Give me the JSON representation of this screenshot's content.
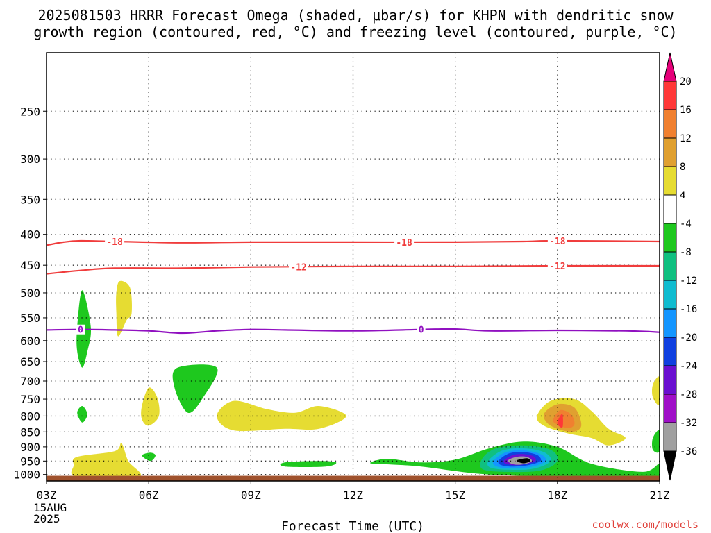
{
  "title": {
    "line1": "2025081503 HRRR Forecast Omega (shaded, μbar/s) for KHPN with dendritic snow",
    "line2": "growth region (contoured, red, °C) and freezing level (contoured, purple, °C)"
  },
  "footer": {
    "xlabel": "Forecast Time (UTC)",
    "site": "coolwx.com/models"
  },
  "chart_data": {
    "type": "heatmap",
    "x_ticks": [
      "03Z",
      "06Z",
      "09Z",
      "12Z",
      "15Z",
      "18Z",
      "21Z"
    ],
    "x_date_line1": "15AUG",
    "x_date_line2": "2025",
    "x_range_hours": [
      3,
      21
    ],
    "y_ticks": [
      250,
      300,
      350,
      400,
      450,
      500,
      550,
      600,
      650,
      700,
      750,
      800,
      850,
      900,
      950,
      1000
    ],
    "y_range_hPa": [
      200,
      1025
    ],
    "y_scale": "log",
    "grid": true,
    "colorbar": {
      "labels": [
        "20",
        "16",
        "12",
        "8",
        "4",
        "-4",
        "-8",
        "-12",
        "-16",
        "-20",
        "-24",
        "-28",
        "-32",
        "-36"
      ],
      "colors": [
        "#e6007a",
        "#ff3838",
        "#f08030",
        "#e0a030",
        "#e6dc32",
        "#ffffff",
        "#1ec81e",
        "#10c080",
        "#10bcd0",
        "#1496ff",
        "#1040e0",
        "#6a10d0",
        "#a010c8",
        "#a0a0a0",
        "#000000"
      ]
    },
    "contours": [
      {
        "level": -18,
        "color": "#f03c3c",
        "label": "-18",
        "points": [
          [
            3,
            417
          ],
          [
            3.5,
            412
          ],
          [
            4,
            410
          ],
          [
            5,
            411
          ],
          [
            7,
            413
          ],
          [
            9,
            412
          ],
          [
            12,
            412
          ],
          [
            15,
            412
          ],
          [
            17,
            411
          ],
          [
            18,
            410
          ],
          [
            21,
            411
          ]
        ],
        "label_x": [
          5,
          13.5,
          18
        ]
      },
      {
        "level": -12,
        "color": "#f03c3c",
        "label": "-12",
        "points": [
          [
            3,
            465
          ],
          [
            4,
            459
          ],
          [
            5,
            455
          ],
          [
            7,
            455
          ],
          [
            9,
            453
          ],
          [
            12,
            452
          ],
          [
            15,
            452
          ],
          [
            18,
            451
          ],
          [
            21,
            451
          ]
        ],
        "label_x": [
          10.4,
          18
        ]
      },
      {
        "level": 0,
        "color": "#9010c0",
        "label": "0",
        "points": [
          [
            3,
            576
          ],
          [
            4,
            575
          ],
          [
            5,
            576
          ],
          [
            6,
            578
          ],
          [
            7,
            583
          ],
          [
            8,
            578
          ],
          [
            9,
            575
          ],
          [
            10,
            576
          ],
          [
            12,
            578
          ],
          [
            14,
            575
          ],
          [
            15,
            574
          ],
          [
            16,
            578
          ],
          [
            18,
            577
          ],
          [
            20,
            578
          ],
          [
            21,
            581
          ]
        ],
        "label_x": [
          4,
          14
        ]
      }
    ],
    "shaded_regions": [
      {
        "value": -6,
        "points": [
          [
            3.9,
            570
          ],
          [
            4.05,
            495
          ],
          [
            4.3,
            570
          ],
          [
            4.2,
            625
          ],
          [
            4.05,
            665
          ],
          [
            3.9,
            625
          ]
        ]
      },
      {
        "value": -6,
        "points": [
          [
            3.9,
            790
          ],
          [
            4.05,
            770
          ],
          [
            4.2,
            795
          ],
          [
            4.05,
            820
          ]
        ]
      },
      {
        "value": -6,
        "points": [
          [
            5.8,
            930
          ],
          [
            6.05,
            920
          ],
          [
            6.2,
            930
          ],
          [
            6.05,
            950
          ]
        ]
      },
      {
        "value": -6,
        "points": [
          [
            6.75,
            715
          ],
          [
            6.85,
            665
          ],
          [
            8,
            665
          ],
          [
            7.6,
            745
          ],
          [
            7.15,
            790
          ]
        ]
      },
      {
        "value": -6,
        "points": [
          [
            10,
            955
          ],
          [
            11,
            950
          ],
          [
            11.5,
            955
          ],
          [
            11.2,
            970
          ],
          [
            10,
            970
          ]
        ]
      },
      {
        "value": -6,
        "points": [
          [
            12.5,
            957
          ],
          [
            13,
            942
          ],
          [
            14,
            955
          ],
          [
            15,
            945
          ],
          [
            16,
            905
          ],
          [
            17,
            882
          ],
          [
            18,
            900
          ],
          [
            19,
            960
          ],
          [
            20.5,
            990
          ],
          [
            21,
            960
          ],
          [
            21,
            1010
          ],
          [
            19,
            1010
          ],
          [
            16,
            1000
          ],
          [
            14,
            970
          ],
          [
            13,
            962
          ]
        ]
      },
      {
        "value": -6,
        "points": [
          [
            20.8,
            870
          ],
          [
            21,
            845
          ],
          [
            21,
            915
          ],
          [
            20.8,
            910
          ]
        ]
      },
      {
        "value": -10,
        "points": [
          [
            15.8,
            940
          ],
          [
            16.2,
            905
          ],
          [
            17,
            895
          ],
          [
            17.8,
            910
          ],
          [
            18,
            950
          ],
          [
            17.5,
            985
          ],
          [
            16.5,
            990
          ],
          [
            15.8,
            980
          ]
        ]
      },
      {
        "value": -14,
        "points": [
          [
            16,
            945
          ],
          [
            16.4,
            912
          ],
          [
            17,
            905
          ],
          [
            17.6,
            918
          ],
          [
            17.8,
            950
          ],
          [
            17.3,
            978
          ],
          [
            16.5,
            982
          ],
          [
            16,
            972
          ]
        ]
      },
      {
        "value": -18,
        "points": [
          [
            16.15,
            945
          ],
          [
            16.5,
            918
          ],
          [
            17,
            912
          ],
          [
            17.5,
            925
          ],
          [
            17.65,
            950
          ],
          [
            17.2,
            972
          ],
          [
            16.5,
            976
          ],
          [
            16.15,
            965
          ]
        ]
      },
      {
        "value": -22,
        "points": [
          [
            16.3,
            945
          ],
          [
            16.6,
            922
          ],
          [
            17,
            918
          ],
          [
            17.4,
            928
          ],
          [
            17.5,
            950
          ],
          [
            17.1,
            966
          ],
          [
            16.6,
            970
          ],
          [
            16.3,
            962
          ]
        ]
      },
      {
        "value": -26,
        "points": [
          [
            16.45,
            945
          ],
          [
            16.7,
            928
          ],
          [
            17,
            925
          ],
          [
            17.3,
            933
          ],
          [
            17.35,
            950
          ],
          [
            17.05,
            962
          ],
          [
            16.7,
            965
          ],
          [
            16.45,
            958
          ]
        ]
      },
      {
        "value": -34,
        "points": [
          [
            16.55,
            948
          ],
          [
            16.8,
            935
          ],
          [
            17.1,
            935
          ],
          [
            17.25,
            950
          ],
          [
            17,
            962
          ],
          [
            16.7,
            962
          ]
        ]
      },
      {
        "value": -38,
        "points": [
          [
            16.8,
            948
          ],
          [
            17.1,
            940
          ],
          [
            17.2,
            950
          ],
          [
            17,
            958
          ]
        ]
      },
      {
        "value": 6,
        "points": [
          [
            5.05,
            500
          ],
          [
            5.15,
            478
          ],
          [
            5.45,
            490
          ],
          [
            5.5,
            540
          ],
          [
            5.35,
            555
          ],
          [
            5.1,
            590
          ],
          [
            5.05,
            540
          ]
        ]
      },
      {
        "value": 6,
        "points": [
          [
            5.8,
            770
          ],
          [
            6,
            718
          ],
          [
            6.25,
            745
          ],
          [
            6.3,
            800
          ],
          [
            6,
            830
          ],
          [
            5.8,
            810
          ]
        ]
      },
      {
        "value": 6,
        "points": [
          [
            8,
            800
          ],
          [
            8.5,
            755
          ],
          [
            9.5,
            780
          ],
          [
            10.3,
            790
          ],
          [
            11,
            770
          ],
          [
            11.8,
            800
          ],
          [
            11,
            840
          ],
          [
            10,
            840
          ],
          [
            8.5,
            845
          ]
        ]
      },
      {
        "value": 6,
        "points": [
          [
            3.8,
            965
          ],
          [
            3.9,
            935
          ],
          [
            5,
            915
          ],
          [
            5.2,
            888
          ],
          [
            5.4,
            950
          ],
          [
            5.7,
            1010
          ],
          [
            3.9,
            1010
          ]
        ]
      },
      {
        "value": 6,
        "points": [
          [
            17.4,
            800
          ],
          [
            17.8,
            755
          ],
          [
            18.5,
            750
          ],
          [
            19,
            785
          ],
          [
            19.5,
            840
          ],
          [
            20,
            870
          ],
          [
            19.5,
            895
          ],
          [
            19,
            870
          ],
          [
            18.3,
            855
          ],
          [
            17.6,
            830
          ]
        ]
      },
      {
        "value": 6,
        "points": [
          [
            20.8,
            710
          ],
          [
            21,
            690
          ],
          [
            21,
            765
          ],
          [
            20.8,
            745
          ]
        ]
      },
      {
        "value": 10,
        "points": [
          [
            17.6,
            795
          ],
          [
            18,
            765
          ],
          [
            18.5,
            775
          ],
          [
            18.7,
            830
          ],
          [
            18.4,
            850
          ],
          [
            17.8,
            830
          ]
        ]
      },
      {
        "value": 14,
        "points": [
          [
            17.9,
            805
          ],
          [
            18.1,
            782
          ],
          [
            18.4,
            795
          ],
          [
            18.5,
            825
          ],
          [
            18.3,
            838
          ],
          [
            17.9,
            820
          ]
        ]
      },
      {
        "value": 18,
        "points": [
          [
            18.05,
            805
          ],
          [
            18.15,
            795
          ],
          [
            18.15,
            835
          ],
          [
            18,
            825
          ]
        ]
      }
    ],
    "ground_pressure_hPa": 1005
  }
}
